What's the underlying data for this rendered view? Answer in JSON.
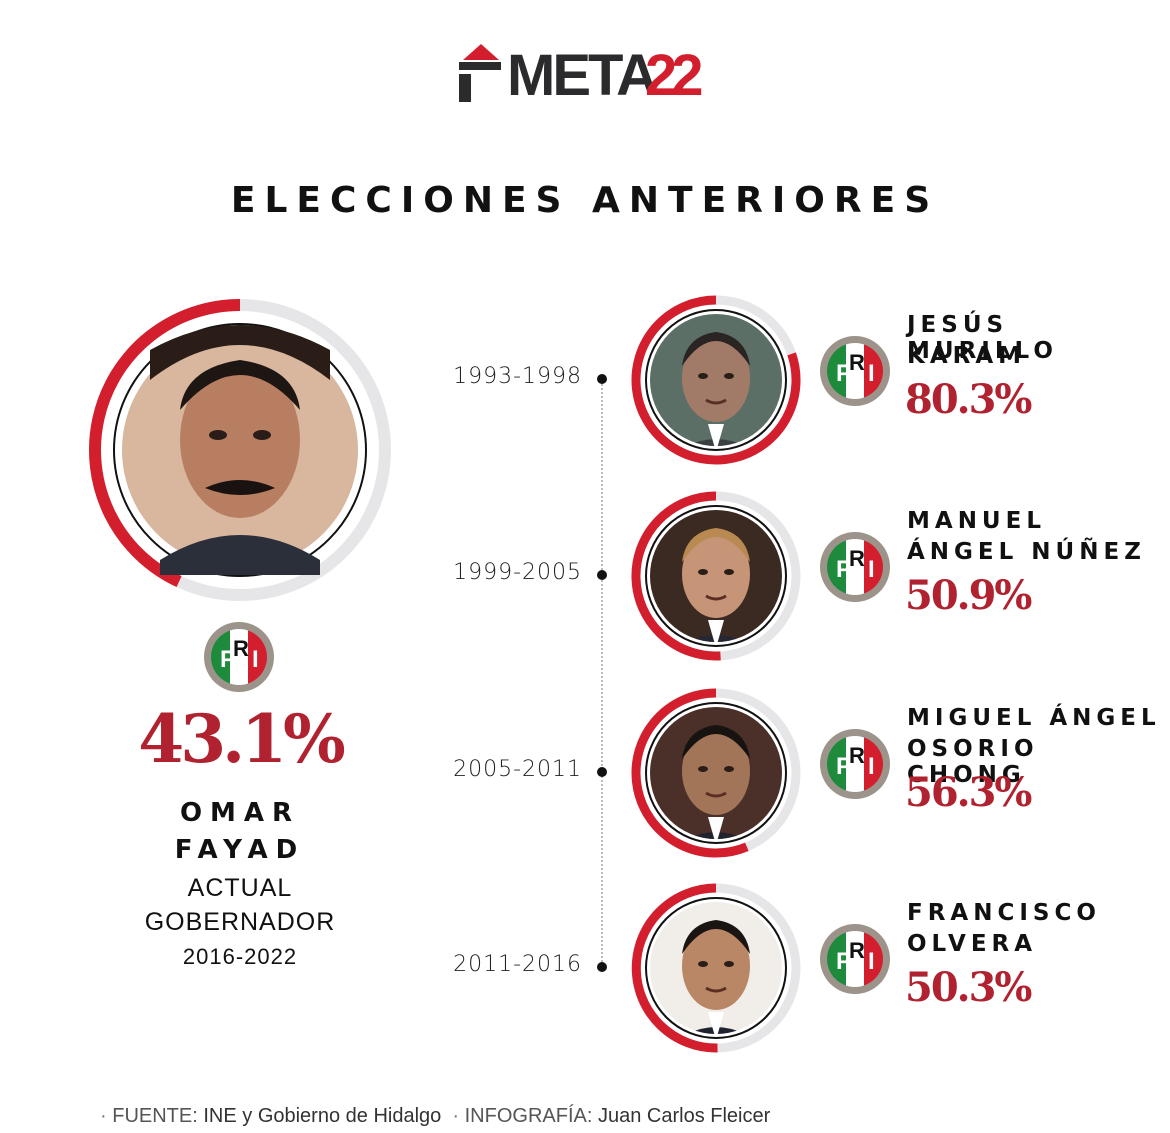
{
  "brand": {
    "logo_text": "META",
    "logo_number": "22",
    "accent_color": "#d31f2d",
    "dark_color": "#2b2b2e"
  },
  "title": "ELECCIONES ANTERIORES",
  "colors": {
    "ring_red": "#d31f2d",
    "ring_gray": "#e6e6e8",
    "pct_red": "#b0222f",
    "pri_green": "#1e8a3c",
    "pri_red": "#d31f2d",
    "pri_ring": "#9c948b"
  },
  "governor": {
    "party": "PRI",
    "percent_label": "43.1%",
    "name_line1": "OMAR",
    "name_line2": "FAYAD",
    "role_line1": "ACTUAL",
    "role_line2": "GOBERNADOR",
    "years": "2016-2022",
    "photo_icon": "portrait-omar-fayad"
  },
  "candidates": [
    {
      "years": "1993-1998",
      "name_line1": "JESÚS MURILLO",
      "name_line2": "KARAM",
      "party": "PRI",
      "percent_label": "80.3%",
      "photo_icon": "portrait-murillo-karam"
    },
    {
      "years": "1999-2005",
      "name_line1": "MANUEL",
      "name_line2": "ÁNGEL NÚÑEZ",
      "party": "PRI",
      "percent_label": "50.9%",
      "photo_icon": "portrait-angel-nunez"
    },
    {
      "years": "2005-2011",
      "name_line1": "MIGUEL ÁNGEL",
      "name_line2": "OSORIO CHONG",
      "party": "PRI",
      "percent_label": "56.3%",
      "photo_icon": "portrait-osorio-chong"
    },
    {
      "years": "2011-2016",
      "name_line1": "FRANCISCO",
      "name_line2": "OLVERA",
      "party": "PRI",
      "percent_label": "50.3%",
      "photo_icon": "portrait-francisco-olvera"
    }
  ],
  "chart_data": {
    "type": "pie",
    "title": "ELECCIONES ANTERIORES",
    "categories": [
      "OMAR FAYAD",
      "JESÚS MURILLO KARAM",
      "MANUEL ÁNGEL NÚÑEZ",
      "MIGUEL ÁNGEL OSORIO CHONG",
      "FRANCISCO OLVERA"
    ],
    "periods": [
      "2016-2022",
      "1993-1998",
      "1999-2005",
      "2005-2011",
      "2011-2016"
    ],
    "values": [
      43.1,
      80.3,
      50.9,
      56.3,
      50.3
    ],
    "unit": "%",
    "max": 100
  },
  "footer": {
    "source_label": "FUENTE:",
    "source_value": "INE y Gobierno de Hidalgo",
    "credit_label": "INFOGRAFÍA:",
    "credit_value": "Juan Carlos Fleicer"
  }
}
